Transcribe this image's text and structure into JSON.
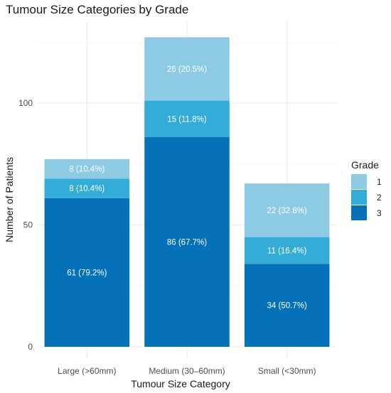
{
  "chart_data": {
    "type": "bar",
    "stacked": true,
    "title": "Tumour Size Categories by Grade",
    "xlabel": "Tumour Size Category",
    "ylabel": "Number of Patients",
    "categories": [
      "Large (>60mm)",
      "Medium (30–60mm)",
      "Small (<30mm)"
    ],
    "ylim": [
      0,
      130
    ],
    "yticks": [
      0,
      50,
      100
    ],
    "grid": true,
    "legend": {
      "title": "Grade",
      "position": "right"
    },
    "series": [
      {
        "name": "3",
        "color": "#0571b8",
        "values": [
          61,
          86,
          34
        ],
        "labels": [
          "61 (79.2%)",
          "86 (67.7%)",
          "34 (50.7%)"
        ]
      },
      {
        "name": "2",
        "color": "#34acd8",
        "values": [
          8,
          15,
          11
        ],
        "labels": [
          "8 (10.4%)",
          "15 (11.8%)",
          "11 (16.4%)"
        ]
      },
      {
        "name": "1",
        "color": "#8dcbe4",
        "values": [
          8,
          26,
          22
        ],
        "labels": [
          "8 (10.4%)",
          "26 (20.5%)",
          "22 (32.8%)"
        ]
      }
    ]
  }
}
